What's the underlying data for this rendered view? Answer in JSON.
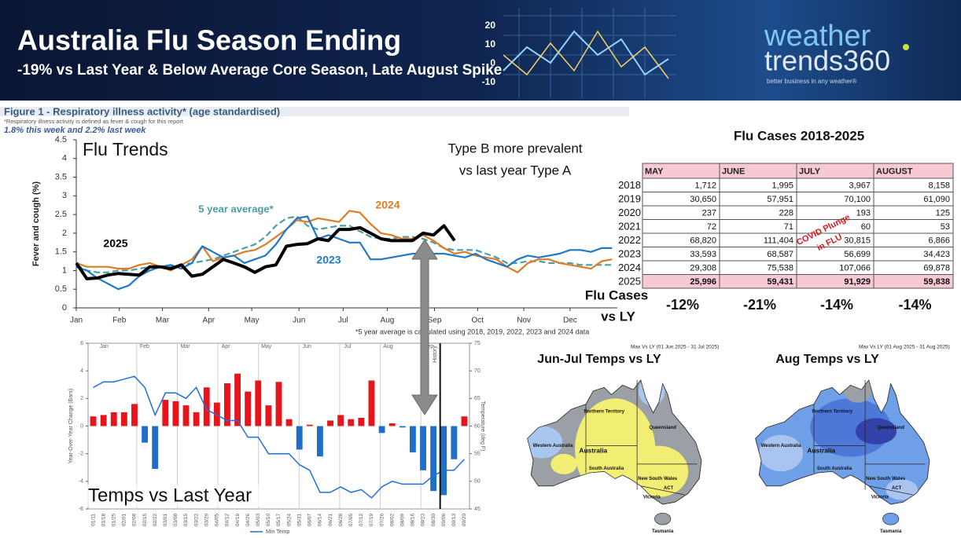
{
  "header": {
    "title": "Australia Flu Season Ending",
    "subtitle": "-19% vs Last Year & Below Average Core Season, Late August Spike",
    "graphic_labels": [
      "20",
      "10",
      "0",
      "-10"
    ],
    "logo": {
      "line1": "weather",
      "line2": "trends360",
      "tagline": "better business in any weather®"
    }
  },
  "chart_data": [
    {
      "type": "line",
      "title": "Figure 1 - Respiratory illness activity* (age standardised)",
      "subtitle": "*Respiratory illness activity is defined as fever & cough for this report",
      "note": "1.8% this week and 2.2% last week",
      "footnote": "*5 year average is calculated using 2018, 2019, 2022, 2023 and 2024 data",
      "annotations": [
        "Flu Trends",
        "Type B more prevalent",
        "vs last year Type A"
      ],
      "ylabel": "Fever and cough (%)",
      "x": [
        1,
        2,
        3,
        4,
        5,
        6,
        7,
        8,
        9,
        10,
        11,
        12,
        13,
        14,
        15,
        16,
        17,
        18,
        19,
        20,
        21,
        22,
        23,
        24,
        25,
        26,
        27,
        28,
        29,
        30,
        31,
        32,
        33,
        34,
        35,
        36,
        37,
        38,
        39,
        40,
        41,
        42,
        43,
        44,
        45,
        46,
        47,
        48,
        49,
        50,
        51,
        52
      ],
      "xlim": [
        1,
        52.5
      ],
      "xticks": [
        {
          "value": 1,
          "label": "Jan"
        },
        {
          "value": 5.1,
          "label": "Feb"
        },
        {
          "value": 9.2,
          "label": "Mar"
        },
        {
          "value": 13.6,
          "label": "Apr"
        },
        {
          "value": 17.7,
          "label": "May"
        },
        {
          "value": 22.2,
          "label": "Jun"
        },
        {
          "value": 26.4,
          "label": "Jul"
        },
        {
          "value": 30.6,
          "label": "Aug"
        },
        {
          "value": 35.1,
          "label": "Sep"
        },
        {
          "value": 39.2,
          "label": "Oct"
        },
        {
          "value": 43.6,
          "label": "Nov"
        },
        {
          "value": 48,
          "label": "Dec"
        }
      ],
      "ylim": [
        0,
        4.5
      ],
      "yticks": [
        0,
        0.5,
        1,
        1.5,
        2,
        2.5,
        3,
        3.5,
        4,
        4.5
      ],
      "grid": false,
      "series": [
        {
          "name": "5 year average*",
          "color": "#4a9fa6",
          "dashed": true,
          "values": [
            1.15,
            1.0,
            0.95,
            0.95,
            1.0,
            1.0,
            1.05,
            1.1,
            1.1,
            1.1,
            1.15,
            1.2,
            1.25,
            1.3,
            1.4,
            1.5,
            1.6,
            1.7,
            1.9,
            2.2,
            2.4,
            2.45,
            2.2,
            2.1,
            2.15,
            2.2,
            2.2,
            2.05,
            1.9,
            1.85,
            1.85,
            1.9,
            1.9,
            1.85,
            1.75,
            1.6,
            1.55,
            1.55,
            1.55,
            1.45,
            1.35,
            1.2,
            1.2,
            1.25,
            1.25,
            1.2,
            1.2,
            1.2,
            1.15,
            1.15,
            1.15,
            1.15
          ]
        },
        {
          "name": "2024",
          "color": "#e07b24",
          "dashed": false,
          "values": [
            1.2,
            1.1,
            1.1,
            1.1,
            1.05,
            1.05,
            1.15,
            1.2,
            1.1,
            1.0,
            1.15,
            1.3,
            1.65,
            1.25,
            1.35,
            1.4,
            1.5,
            1.55,
            1.7,
            1.9,
            2.1,
            2.35,
            2.3,
            2.4,
            2.35,
            2.3,
            2.6,
            2.55,
            2.25,
            2.0,
            1.95,
            1.85,
            1.85,
            1.95,
            1.8,
            1.6,
            1.45,
            1.5,
            1.4,
            1.35,
            1.3,
            1.1,
            0.95,
            1.2,
            1.3,
            1.3,
            1.2,
            1.15,
            1.1,
            1.05,
            1.25,
            1.3
          ]
        },
        {
          "name": "2023",
          "color": "#1f78c8",
          "dashed": false,
          "values": [
            1.1,
            1.0,
            0.8,
            0.65,
            0.5,
            0.6,
            0.85,
            1.0,
            1.1,
            1.15,
            1.05,
            1.2,
            1.65,
            1.5,
            1.35,
            1.4,
            1.2,
            1.3,
            1.4,
            1.7,
            2.1,
            2.4,
            2.45,
            1.85,
            1.95,
            1.85,
            1.75,
            1.75,
            1.3,
            1.3,
            1.35,
            1.4,
            1.45,
            1.45,
            1.45,
            1.45,
            1.4,
            1.35,
            1.45,
            1.3,
            1.2,
            1.1,
            1.3,
            1.4,
            1.35,
            1.4,
            1.45,
            1.55,
            1.55,
            1.5,
            1.6,
            1.6
          ]
        },
        {
          "name": "2025",
          "color": "#000000",
          "dashed": false,
          "values": [
            1.2,
            0.78,
            0.8,
            0.88,
            0.92,
            0.9,
            0.88,
            1.1,
            1.1,
            1.05,
            1.15,
            0.85,
            0.9,
            1.1,
            1.3,
            1.2,
            1.1,
            0.95,
            1.1,
            1.15,
            1.65,
            1.7,
            1.72,
            1.85,
            1.8,
            2.1,
            2.1,
            2.15,
            2.0,
            1.85,
            1.8,
            1.8,
            1.8,
            2.0,
            1.95,
            2.2,
            1.8,
            null,
            null,
            null,
            null,
            null,
            null,
            null,
            null,
            null,
            null,
            null,
            null,
            null,
            null,
            null
          ]
        }
      ]
    },
    {
      "type": "bar_line",
      "title": "Temps vs Last Year",
      "ylabel": "Year-Over-Year Change (Bars)",
      "y2label": "Temperature (deg F)",
      "month_labels": [
        "Jan",
        "Feb",
        "Mar",
        "Apr",
        "May",
        "Jun",
        "Jul",
        "Aug",
        "Sep"
      ],
      "annotation": "History",
      "categories": [
        "01/11",
        "01/18",
        "01/25",
        "02/01",
        "02/08",
        "02/15",
        "02/22",
        "03/01",
        "03/08",
        "03/15",
        "03/22",
        "03/29",
        "04/05",
        "04/12",
        "04/19",
        "04/26",
        "05/03",
        "05/10",
        "05/17",
        "05/24",
        "05/31",
        "06/07",
        "06/14",
        "06/21",
        "06/28",
        "07/05",
        "07/12",
        "07/19",
        "07/26",
        "08/02",
        "08/09",
        "08/16",
        "08/23",
        "08/30",
        "09/06",
        "09/13",
        "09/20"
      ],
      "ylim": [
        -6,
        6
      ],
      "yticks": [
        -6,
        -4,
        -2,
        0,
        2,
        4,
        6
      ],
      "y2lim": [
        45,
        75
      ],
      "y2ticks": [
        45,
        50,
        55,
        60,
        65,
        70,
        75
      ],
      "grid": false,
      "series": [
        {
          "type": "bar",
          "positive_color": "#e8141b",
          "negative_color": "#1f6fc9",
          "values": [
            0.7,
            0.8,
            1.0,
            1.0,
            1.6,
            -1.2,
            -3.1,
            1.9,
            1.8,
            1.5,
            1.0,
            2.8,
            1.7,
            3.1,
            3.8,
            2.5,
            3.3,
            1.5,
            3.2,
            0.5,
            -1.7,
            0.1,
            -2.2,
            0.4,
            0.8,
            0.5,
            0.6,
            3.3,
            -0.5,
            0.2,
            -0.1,
            -1.9,
            -3.2,
            -4.7,
            -5.0,
            -2.4,
            0.7
          ]
        },
        {
          "type": "line",
          "name": "Min Temp",
          "color": "#1f6fe0",
          "axis": "y2",
          "values": [
            67,
            68,
            68,
            68.5,
            69,
            67,
            62,
            66,
            66,
            65,
            67,
            63,
            62,
            61,
            61,
            58,
            58,
            55,
            55,
            55,
            53,
            52,
            48,
            48,
            49,
            48,
            48.5,
            47,
            49,
            50,
            49.5,
            49.5,
            49.5,
            51,
            52,
            52,
            54
          ]
        }
      ]
    }
  ],
  "table": {
    "title": "Flu Cases 2018-2025",
    "columns": [
      "MAY",
      "JUNE",
      "JULY",
      "AUGUST"
    ],
    "rows": [
      {
        "year": "2018",
        "cells": [
          "1,712",
          "1,995",
          "3,967",
          "8,158"
        ]
      },
      {
        "year": "2019",
        "cells": [
          "30,650",
          "57,951",
          "70,100",
          "61,090"
        ]
      },
      {
        "year": "2020",
        "cells": [
          "237",
          "228",
          "193",
          "125"
        ]
      },
      {
        "year": "2021",
        "cells": [
          "72",
          "71",
          "60",
          "53"
        ]
      },
      {
        "year": "2022",
        "cells": [
          "68,820",
          "111,404",
          "30,815",
          "6,866"
        ]
      },
      {
        "year": "2023",
        "cells": [
          "33,593",
          "68,587",
          "56,699",
          "34,423"
        ]
      },
      {
        "year": "2024",
        "cells": [
          "29,308",
          "75,538",
          "107,066",
          "69,878"
        ]
      },
      {
        "year": "2025",
        "cells": [
          "25,996",
          "59,431",
          "91,929",
          "59,838"
        ]
      }
    ],
    "note_lines": [
      "COVID Plunge",
      "in FLU"
    ],
    "summary": {
      "label_lines": [
        "Flu Cases",
        "vs LY"
      ],
      "values": [
        "-12%",
        "-21%",
        "-14%",
        "-14%"
      ]
    }
  },
  "maps": {
    "region_labels": [
      "Northern Territory",
      "Queensland",
      "Western Australia",
      "Australia",
      "South Australia",
      "New South Wales",
      "ACT",
      "Victoria",
      "Tasmania"
    ],
    "panels": [
      {
        "title": "Jun-Jul Temps vs LY",
        "caption": "Max Vs LY (01 Jun 2025 - 31 Jul 2025)"
      },
      {
        "title": "Aug Temps vs LY",
        "caption": "Max Vs LY (01 Aug 2025 - 31 Aug 2025)"
      }
    ]
  }
}
